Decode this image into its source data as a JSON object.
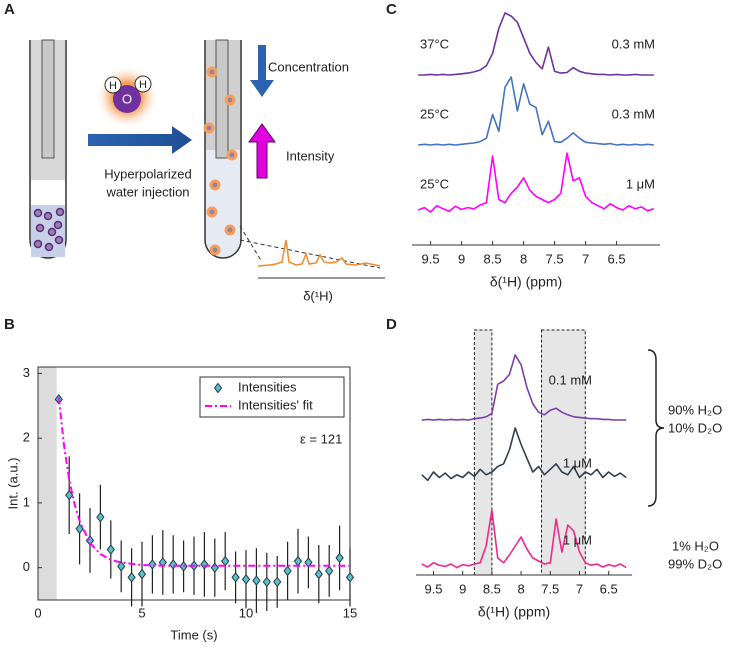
{
  "panel_labels": [
    "A",
    "B",
    "C",
    "D"
  ],
  "diagram": {
    "atoms": [
      "H",
      "H",
      "O"
    ],
    "injection": [
      "Hyperpolarized",
      "water injection"
    ],
    "concentration": "Concentration",
    "intensity": "Intensity",
    "axis_label": "δ(¹H)"
  },
  "solvents": [
    "90% H₂O",
    "10% D₂O",
    "1% H₂O",
    "99% D₂O"
  ],
  "chart_data": [
    {
      "type": "scatter",
      "xlabel": "Time (s)",
      "ylabel": "Int. (a.u.)",
      "annotation": "ε = 121",
      "xlim": [
        0,
        15
      ],
      "ylim": [
        -0.5,
        3.1
      ],
      "xticks": [
        0,
        5,
        10,
        15
      ],
      "yticks": [
        0,
        1,
        2,
        3
      ],
      "shaded_xrange": [
        0,
        0.9
      ],
      "legend": "upper right",
      "series": [
        {
          "name": "Intensities",
          "color": "#5cc0c0",
          "x": [
            1,
            1.5,
            2,
            2.5,
            3,
            3.5,
            4,
            4.5,
            5,
            5.5,
            6,
            6.5,
            7,
            7.5,
            8,
            8.5,
            9,
            9.5,
            10,
            10.5,
            11,
            11.5,
            12,
            12.5,
            13,
            13.5,
            14,
            14.5,
            15
          ],
          "values": [
            2.6,
            1.12,
            0.6,
            0.42,
            0.78,
            0.28,
            0.02,
            -0.15,
            -0.1,
            0.05,
            0.08,
            0.05,
            0.02,
            0.03,
            0.05,
            0.0,
            0.1,
            -0.15,
            -0.18,
            -0.2,
            -0.22,
            -0.22,
            -0.05,
            0.1,
            0.08,
            -0.1,
            -0.05,
            0.15,
            -0.15
          ],
          "errors": [
            0,
            0.6,
            0.55,
            0.5,
            0.5,
            0.45,
            0.4,
            0.45,
            0.5,
            0.45,
            0.5,
            0.45,
            0.4,
            0.45,
            0.5,
            0.45,
            0.45,
            0.4,
            0.45,
            0.5,
            0.45,
            0.4,
            0.45,
            0.5,
            0.4,
            0.45,
            0.4,
            0.5,
            0.45
          ]
        },
        {
          "name": "Intensities' fit",
          "color": "#ff00ff",
          "style": "dashed",
          "x": [
            1,
            1.25,
            1.5,
            1.75,
            2,
            2.5,
            3,
            3.5,
            4,
            5,
            6,
            8,
            10,
            12,
            15
          ],
          "values": [
            2.63,
            1.89,
            1.36,
            0.99,
            0.72,
            0.38,
            0.21,
            0.12,
            0.08,
            0.04,
            0.03,
            0.03,
            0.03,
            0.03,
            0.03
          ]
        }
      ]
    },
    {
      "type": "line",
      "xlabel": "δ(¹H) (ppm)",
      "xlim": [
        9.8,
        5.8
      ],
      "xticks": [
        9.5,
        9,
        8.5,
        8,
        7.5,
        7,
        6.5
      ],
      "x": [
        9.7,
        9.6,
        9.5,
        9.4,
        9.3,
        9.2,
        9.1,
        9.0,
        8.9,
        8.8,
        8.7,
        8.6,
        8.5,
        8.4,
        8.3,
        8.2,
        8.1,
        8.0,
        7.9,
        7.8,
        7.7,
        7.6,
        7.5,
        7.4,
        7.3,
        7.2,
        7.1,
        7.0,
        6.9,
        6.8,
        6.7,
        6.6,
        6.5,
        6.4,
        6.3,
        6.2,
        6.1,
        6.0,
        5.9
      ],
      "series": [
        {
          "labels": [
            "37°C",
            "0.3 mM"
          ],
          "color": "#7030a0",
          "values": [
            0.0,
            0.0,
            0.01,
            0.0,
            0.01,
            0.0,
            0.01,
            0.02,
            0.03,
            0.05,
            0.08,
            0.15,
            0.35,
            0.75,
            1.0,
            0.95,
            0.85,
            0.6,
            0.35,
            0.2,
            0.1,
            0.45,
            0.06,
            0.03,
            0.04,
            0.12,
            0.06,
            0.03,
            0.02,
            0.01,
            0.01,
            0.0,
            0.01,
            0.0,
            0.0,
            0.01,
            0.0,
            0.0,
            0.0
          ]
        },
        {
          "labels": [
            "25°C",
            "0.3 mM"
          ],
          "color": "#4472c4",
          "values": [
            0.0,
            0.01,
            0.0,
            0.01,
            0.0,
            0.01,
            0.0,
            0.01,
            0.02,
            0.03,
            0.05,
            0.1,
            0.45,
            0.2,
            0.85,
            1.0,
            0.5,
            0.9,
            0.6,
            0.55,
            0.15,
            0.35,
            0.05,
            0.04,
            0.1,
            0.18,
            0.1,
            0.04,
            0.03,
            0.02,
            0.01,
            0.02,
            0.0,
            0.01,
            0.0,
            0.01,
            0.0,
            0.01,
            0.0
          ]
        },
        {
          "labels": [
            "25°C",
            "1 μM"
          ],
          "color": "#ff00ff",
          "values": [
            0.08,
            0.12,
            0.05,
            0.15,
            0.1,
            0.06,
            0.14,
            0.09,
            0.12,
            0.1,
            0.16,
            0.2,
            0.95,
            0.25,
            0.2,
            0.35,
            0.45,
            0.6,
            0.4,
            0.3,
            0.25,
            0.2,
            0.25,
            0.35,
            1.0,
            0.55,
            0.6,
            0.3,
            0.2,
            0.15,
            0.1,
            0.18,
            0.12,
            0.08,
            0.15,
            0.1,
            0.13,
            0.07,
            0.1
          ]
        }
      ]
    },
    {
      "type": "line",
      "xlabel": "δ(¹H) (ppm)",
      "xlim": [
        9.8,
        6.1
      ],
      "xticks": [
        9.5,
        9,
        8.5,
        8,
        7.5,
        7,
        6.5
      ],
      "shaded_regions": [
        [
          8.8,
          8.5
        ],
        [
          7.65,
          6.9
        ]
      ],
      "x": [
        9.7,
        9.6,
        9.5,
        9.4,
        9.3,
        9.2,
        9.1,
        9.0,
        8.9,
        8.8,
        8.7,
        8.6,
        8.5,
        8.4,
        8.3,
        8.2,
        8.1,
        8.0,
        7.9,
        7.8,
        7.7,
        7.6,
        7.5,
        7.4,
        7.3,
        7.2,
        7.1,
        7.0,
        6.9,
        6.8,
        6.7,
        6.6,
        6.5,
        6.4,
        6.3,
        6.2
      ],
      "series": [
        {
          "labels": [
            "0.1 mM"
          ],
          "color": "#7b3fa8",
          "values": [
            0.0,
            0.01,
            0.0,
            0.01,
            0.0,
            0.01,
            0.0,
            0.01,
            0.0,
            0.02,
            0.03,
            0.05,
            0.1,
            0.55,
            0.6,
            0.7,
            1.0,
            0.85,
            0.5,
            0.25,
            0.12,
            0.08,
            0.15,
            0.18,
            0.12,
            0.08,
            0.05,
            0.04,
            0.03,
            0.02,
            0.02,
            0.01,
            0.01,
            0.0,
            0.0,
            0.0
          ]
        },
        {
          "labels": [
            "1 μM"
          ],
          "color": "#333f4f",
          "values": [
            0.15,
            0.05,
            0.2,
            0.1,
            0.18,
            0.08,
            0.15,
            0.1,
            0.2,
            0.12,
            0.25,
            0.15,
            0.2,
            0.3,
            0.35,
            0.6,
            1.0,
            0.7,
            0.45,
            0.2,
            0.3,
            0.15,
            0.25,
            0.35,
            0.2,
            0.15,
            0.3,
            0.1,
            0.2,
            0.15,
            0.25,
            0.1,
            0.2,
            0.12,
            0.18,
            0.1
          ]
        },
        {
          "labels": [
            "1 μM"
          ],
          "color": "#f0288c",
          "values": [
            0.1,
            0.05,
            0.12,
            0.08,
            0.06,
            0.1,
            0.04,
            0.09,
            0.07,
            0.1,
            0.12,
            0.4,
            1.0,
            0.2,
            0.12,
            0.25,
            0.4,
            0.55,
            0.35,
            0.2,
            0.15,
            0.1,
            0.12,
            0.85,
            0.3,
            0.75,
            0.65,
            0.3,
            0.12,
            0.08,
            0.1,
            0.05,
            0.09,
            0.06,
            0.1,
            0.04
          ]
        }
      ]
    }
  ]
}
